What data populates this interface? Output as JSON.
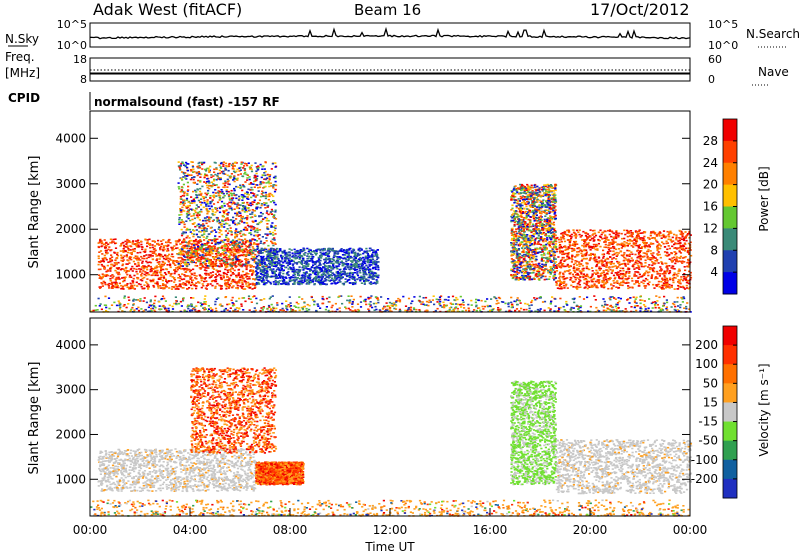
{
  "header": {
    "station": "Adak West (fitACF)",
    "beam": "Beam 16",
    "date": "17/Oct/2012"
  },
  "noise_panel": {
    "left_label": "N.Sky",
    "right_label": "N.Search",
    "left_ticks": [
      "10^5",
      "10^0"
    ],
    "right_ticks": [
      "10^5",
      "10^0"
    ]
  },
  "freq_panel": {
    "left_label_1": "Freq.",
    "left_label_2": "[MHz]",
    "right_label": "Nave",
    "left_ticks": [
      "18",
      "8"
    ],
    "right_ticks": [
      "60",
      "0"
    ]
  },
  "cpid_panel": {
    "label": "CPID",
    "text": "normalsound (fast) -157 RF"
  },
  "chart_data": [
    {
      "type": "heatmap",
      "name": "power",
      "ylabel": "Slant Range [km]",
      "xlabel": "",
      "ylim": [
        180,
        4600
      ],
      "yticks": [
        "1000",
        "2000",
        "3000",
        "4000"
      ],
      "colorbar": {
        "label": "Power [dB]",
        "ticks": [
          "4",
          "8",
          "12",
          "16",
          "20",
          "24",
          "28"
        ],
        "colors": [
          "#0000e6",
          "#2040b0",
          "#3a8a78",
          "#64c832",
          "#ffc000",
          "#ff8000",
          "#ff4000",
          "#f00000"
        ]
      },
      "echo_regions": [
        {
          "t": [
            0.3,
            6.6
          ],
          "r": [
            700,
            1800
          ],
          "level": "high"
        },
        {
          "t": [
            3.5,
            7.4
          ],
          "r": [
            1200,
            3500
          ],
          "level": "mixed"
        },
        {
          "t": [
            6.6,
            11.5
          ],
          "r": [
            800,
            1600
          ],
          "level": "low"
        },
        {
          "t": [
            16.8,
            18.6
          ],
          "r": [
            900,
            3000
          ],
          "level": "mixed"
        },
        {
          "t": [
            18.6,
            24.0
          ],
          "r": [
            700,
            2000
          ],
          "level": "high"
        },
        {
          "t": [
            0,
            24.0
          ],
          "r": [
            200,
            550
          ],
          "level": "scatter"
        }
      ]
    },
    {
      "type": "heatmap",
      "name": "velocity",
      "ylabel": "Slant Range [km]",
      "xlabel": "Time UT",
      "ylim": [
        180,
        4600
      ],
      "yticks": [
        "1000",
        "2000",
        "3000",
        "4000"
      ],
      "xticks": [
        "00:00",
        "04:00",
        "08:00",
        "12:00",
        "16:00",
        "20:00",
        "00:00"
      ],
      "colorbar": {
        "label": "Velocity [m s⁻¹]",
        "ticks": [
          "200",
          "100",
          "50",
          "15",
          "-15",
          "-50",
          "-100",
          "-200"
        ],
        "colors": [
          "#2030c0",
          "#1060a0",
          "#30a050",
          "#70e030",
          "#c8c8c8",
          "#ffa020",
          "#ff7000",
          "#ff3000",
          "#f00000"
        ]
      },
      "echo_regions": [
        {
          "t": [
            0.3,
            6.6
          ],
          "r": [
            750,
            1700
          ],
          "level": "gray"
        },
        {
          "t": [
            4.0,
            7.4
          ],
          "r": [
            1600,
            3500
          ],
          "level": "neg"
        },
        {
          "t": [
            6.6,
            8.5
          ],
          "r": [
            900,
            1400
          ],
          "level": "neg"
        },
        {
          "t": [
            16.8,
            18.6
          ],
          "r": [
            900,
            3200
          ],
          "level": "pos"
        },
        {
          "t": [
            18.6,
            24.0
          ],
          "r": [
            700,
            1900
          ],
          "level": "gray"
        },
        {
          "t": [
            0,
            24.0
          ],
          "r": [
            200,
            550
          ],
          "level": "scatter"
        }
      ]
    }
  ]
}
